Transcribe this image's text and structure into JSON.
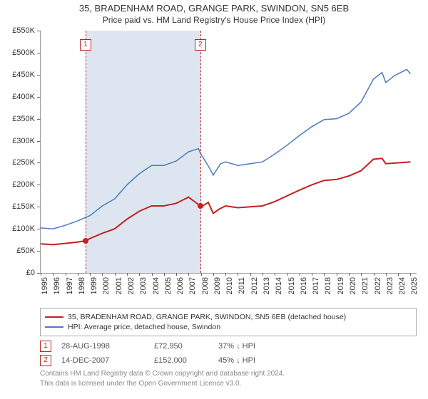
{
  "title": {
    "line1": "35, BRADENHAM ROAD, GRANGE PARK, SWINDON, SN5 6EB",
    "line2": "Price paid vs. HM Land Registry's House Price Index (HPI)",
    "fontsize_line1": 13,
    "fontsize_line2": 12
  },
  "chart": {
    "type": "line",
    "background_color": "#ffffff",
    "band_color": "#dde6f0",
    "band_start_year": 1998.65,
    "band_end_year": 2007.95,
    "x": {
      "min": 1995,
      "max": 2025.5,
      "ticks": [
        1995,
        1996,
        1997,
        1998,
        1999,
        2000,
        2001,
        2002,
        2003,
        2004,
        2005,
        2006,
        2007,
        2008,
        2009,
        2010,
        2011,
        2012,
        2013,
        2014,
        2015,
        2016,
        2017,
        2018,
        2019,
        2020,
        2021,
        2022,
        2023,
        2024,
        2025
      ],
      "tick_fontsize": 11
    },
    "y": {
      "min": 0,
      "max": 550000,
      "ticks": [
        0,
        50000,
        100000,
        150000,
        200000,
        250000,
        300000,
        350000,
        400000,
        450000,
        500000,
        550000
      ],
      "tick_labels": [
        "£0",
        "£50K",
        "£100K",
        "£150K",
        "£200K",
        "£250K",
        "£300K",
        "£350K",
        "£400K",
        "£450K",
        "£500K",
        "£550K"
      ],
      "tick_fontsize": 11
    },
    "series": [
      {
        "id": "price_paid",
        "label": "35, BRADENHAM ROAD, GRANGE PARK, SWINDON, SN5 6EB (detached house)",
        "color": "#c42020",
        "line_width": 2,
        "points": [
          [
            1995,
            66000
          ],
          [
            1996,
            64000
          ],
          [
            1997,
            67000
          ],
          [
            1998,
            70000
          ],
          [
            1998.65,
            72950
          ],
          [
            1999,
            78000
          ],
          [
            2000,
            90000
          ],
          [
            2001,
            100000
          ],
          [
            2002,
            122000
          ],
          [
            2003,
            140000
          ],
          [
            2004,
            152000
          ],
          [
            2005,
            152000
          ],
          [
            2006,
            158000
          ],
          [
            2007,
            172000
          ],
          [
            2007.95,
            152000
          ],
          [
            2008,
            150000
          ],
          [
            2008.6,
            160000
          ],
          [
            2009,
            135000
          ],
          [
            2009.5,
            145000
          ],
          [
            2010,
            152000
          ],
          [
            2011,
            148000
          ],
          [
            2012,
            150000
          ],
          [
            2013,
            152000
          ],
          [
            2014,
            162000
          ],
          [
            2015,
            175000
          ],
          [
            2016,
            188000
          ],
          [
            2017,
            200000
          ],
          [
            2018,
            210000
          ],
          [
            2019,
            212000
          ],
          [
            2020,
            220000
          ],
          [
            2021,
            232000
          ],
          [
            2022,
            258000
          ],
          [
            2022.7,
            260000
          ],
          [
            2023,
            248000
          ],
          [
            2024,
            250000
          ],
          [
            2025,
            252000
          ]
        ]
      },
      {
        "id": "hpi",
        "label": "HPI: Average price, detached house, Swindon",
        "color": "#4a7bbf",
        "line_width": 1.5,
        "points": [
          [
            1995,
            102000
          ],
          [
            1996,
            100000
          ],
          [
            1997,
            108000
          ],
          [
            1998,
            118000
          ],
          [
            1999,
            130000
          ],
          [
            2000,
            152000
          ],
          [
            2001,
            168000
          ],
          [
            2002,
            200000
          ],
          [
            2003,
            225000
          ],
          [
            2004,
            244000
          ],
          [
            2005,
            244000
          ],
          [
            2006,
            254000
          ],
          [
            2007,
            275000
          ],
          [
            2007.8,
            282000
          ],
          [
            2008,
            270000
          ],
          [
            2008.7,
            238000
          ],
          [
            2009,
            222000
          ],
          [
            2009.6,
            248000
          ],
          [
            2010,
            252000
          ],
          [
            2011,
            244000
          ],
          [
            2012,
            248000
          ],
          [
            2013,
            252000
          ],
          [
            2014,
            270000
          ],
          [
            2015,
            290000
          ],
          [
            2016,
            312000
          ],
          [
            2017,
            332000
          ],
          [
            2018,
            348000
          ],
          [
            2019,
            350000
          ],
          [
            2020,
            362000
          ],
          [
            2021,
            388000
          ],
          [
            2022,
            440000
          ],
          [
            2022.7,
            455000
          ],
          [
            2023,
            432000
          ],
          [
            2023.7,
            448000
          ],
          [
            2024,
            452000
          ],
          [
            2024.7,
            462000
          ],
          [
            2025,
            452000
          ]
        ]
      }
    ],
    "events": [
      {
        "n": "1",
        "year": 1998.65,
        "price_y": 72950
      },
      {
        "n": "2",
        "year": 2007.95,
        "price_y": 152000
      }
    ],
    "event_line_color": "#c42020",
    "event_dot_color": "#c42020"
  },
  "legend": {
    "rows": [
      {
        "color": "#c42020",
        "label": "35, BRADENHAM ROAD, GRANGE PARK, SWINDON, SN5 6EB (detached house)"
      },
      {
        "color": "#4a7bbf",
        "label": "HPI: Average price, detached house, Swindon"
      }
    ]
  },
  "events_table": {
    "rows": [
      {
        "n": "1",
        "date": "28-AUG-1998",
        "price": "£72,950",
        "diff": "37% ↓ HPI"
      },
      {
        "n": "2",
        "date": "14-DEC-2007",
        "price": "£152,000",
        "diff": "45% ↓ HPI"
      }
    ]
  },
  "footnote": {
    "line1": "Contains HM Land Registry data © Crown copyright and database right 2024.",
    "line2": "This data is licensed under the Open Government Licence v3.0."
  }
}
